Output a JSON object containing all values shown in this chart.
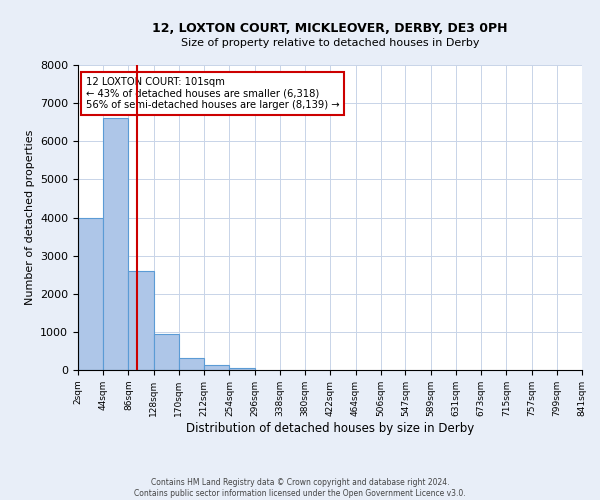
{
  "title1": "12, LOXTON COURT, MICKLEOVER, DERBY, DE3 0PH",
  "title2": "Size of property relative to detached houses in Derby",
  "xlabel": "Distribution of detached houses by size in Derby",
  "ylabel": "Number of detached properties",
  "bin_edges": [
    2,
    44,
    86,
    128,
    170,
    212,
    254,
    296,
    338,
    380,
    422,
    464,
    506,
    547,
    589,
    631,
    673,
    715,
    757,
    799,
    841
  ],
  "bar_heights": [
    4000,
    6600,
    2600,
    950,
    320,
    130,
    50,
    0,
    0,
    0,
    0,
    0,
    0,
    0,
    0,
    0,
    0,
    0,
    0,
    0
  ],
  "bar_color": "#aec6e8",
  "bar_edgecolor": "#5b9bd5",
  "grid_color": "#c8d4e8",
  "property_line_x": 101,
  "property_line_color": "#cc0000",
  "annotation_title": "12 LOXTON COURT: 101sqm",
  "annotation_line1": "← 43% of detached houses are smaller (6,318)",
  "annotation_line2": "56% of semi-detached houses are larger (8,139) →",
  "annotation_box_edgecolor": "#cc0000",
  "ylim": [
    0,
    8000
  ],
  "yticks": [
    0,
    1000,
    2000,
    3000,
    4000,
    5000,
    6000,
    7000,
    8000
  ],
  "tick_labels": [
    "2sqm",
    "44sqm",
    "86sqm",
    "128sqm",
    "170sqm",
    "212sqm",
    "254sqm",
    "296sqm",
    "338sqm",
    "380sqm",
    "422sqm",
    "464sqm",
    "506sqm",
    "547sqm",
    "589sqm",
    "631sqm",
    "673sqm",
    "715sqm",
    "757sqm",
    "799sqm",
    "841sqm"
  ],
  "footnote1": "Contains HM Land Registry data © Crown copyright and database right 2024.",
  "footnote2": "Contains public sector information licensed under the Open Government Licence v3.0.",
  "background_color": "#e8eef8",
  "plot_bg_color": "#ffffff"
}
